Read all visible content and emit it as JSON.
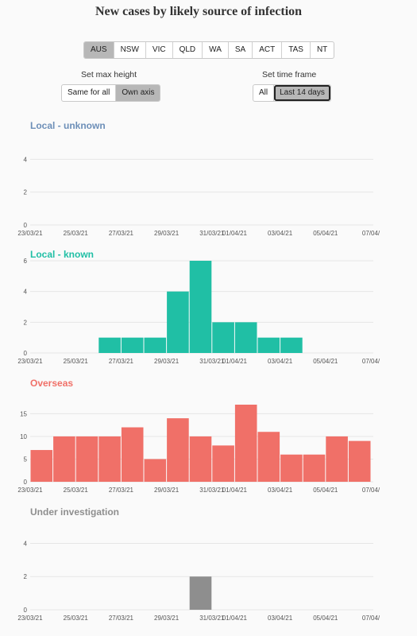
{
  "title": "New cases by likely source of infection",
  "region_tabs": [
    {
      "label": "AUS",
      "active": true
    },
    {
      "label": "NSW",
      "active": false
    },
    {
      "label": "VIC",
      "active": false
    },
    {
      "label": "QLD",
      "active": false
    },
    {
      "label": "WA",
      "active": false
    },
    {
      "label": "SA",
      "active": false
    },
    {
      "label": "ACT",
      "active": false
    },
    {
      "label": "TAS",
      "active": false
    },
    {
      "label": "NT",
      "active": false
    }
  ],
  "max_height": {
    "label": "Set max height",
    "options": [
      {
        "label": "Same for all",
        "active": false
      },
      {
        "label": "Own axis",
        "active": true
      }
    ]
  },
  "time_frame": {
    "label": "Set time frame",
    "options": [
      {
        "label": "All",
        "active": false
      },
      {
        "label": "Last 14 days",
        "active": true
      }
    ]
  },
  "colors": {
    "local_unknown": "#6d8fb8",
    "local_known": "#20bfa5",
    "overseas": "#f07068",
    "under_investigation": "#8e8e8e",
    "grid": "#e6e6e6"
  },
  "chart_data": [
    {
      "type": "bar",
      "title": "Local - unknown",
      "categories": [
        "23/03/21",
        "24/03/21",
        "25/03/21",
        "26/03/21",
        "27/03/21",
        "28/03/21",
        "29/03/21",
        "30/03/21",
        "31/03/21",
        "01/04/21",
        "02/04/21",
        "03/04/21",
        "04/04/21",
        "05/04/21",
        "06/04/21",
        "07/04/21"
      ],
      "values": [
        0,
        0,
        0,
        0,
        0,
        0,
        0,
        0,
        0,
        0,
        0,
        0,
        0,
        0,
        0,
        0
      ],
      "yticks": [
        0,
        2,
        4
      ],
      "ylim": [
        0,
        4.5
      ],
      "xtick_labels": [
        "23/03/21",
        "25/03/21",
        "27/03/21",
        "29/03/21",
        "31/03/21",
        "01/04/21",
        "03/04/21",
        "05/04/21",
        "07/04/"
      ],
      "grid": true
    },
    {
      "type": "bar",
      "title": "Local - known",
      "categories": [
        "23/03/21",
        "24/03/21",
        "25/03/21",
        "26/03/21",
        "27/03/21",
        "28/03/21",
        "29/03/21",
        "30/03/21",
        "31/03/21",
        "01/04/21",
        "02/04/21",
        "03/04/21",
        "04/04/21",
        "05/04/21",
        "06/04/21",
        "07/04/21"
      ],
      "values": [
        0,
        0,
        0,
        1,
        1,
        1,
        4,
        6,
        2,
        2,
        1,
        1,
        0,
        0,
        0,
        0
      ],
      "yticks": [
        0,
        2,
        4,
        6
      ],
      "ylim": [
        0,
        6
      ],
      "xtick_labels": [
        "23/03/21",
        "25/03/21",
        "27/03/21",
        "29/03/21",
        "31/03/21",
        "01/04/21",
        "03/04/21",
        "05/04/21",
        "07/04/"
      ],
      "grid": true
    },
    {
      "type": "bar",
      "title": "Overseas",
      "categories": [
        "23/03/21",
        "24/03/21",
        "25/03/21",
        "26/03/21",
        "27/03/21",
        "28/03/21",
        "29/03/21",
        "30/03/21",
        "31/03/21",
        "01/04/21",
        "02/04/21",
        "03/04/21",
        "04/04/21",
        "05/04/21",
        "06/04/21",
        "07/04/21"
      ],
      "values": [
        7,
        10,
        10,
        10,
        12,
        5,
        14,
        10,
        8,
        17,
        11,
        6,
        6,
        10,
        9,
        0
      ],
      "yticks": [
        0,
        5,
        10,
        15
      ],
      "ylim": [
        0,
        17
      ],
      "xtick_labels": [
        "23/03/21",
        "25/03/21",
        "27/03/21",
        "29/03/21",
        "31/03/21",
        "01/04/21",
        "03/04/21",
        "05/04/21",
        "07/04/"
      ],
      "grid": true
    },
    {
      "type": "bar",
      "title": "Under investigation",
      "categories": [
        "23/03/21",
        "24/03/21",
        "25/03/21",
        "26/03/21",
        "27/03/21",
        "28/03/21",
        "29/03/21",
        "30/03/21",
        "31/03/21",
        "01/04/21",
        "02/04/21",
        "03/04/21",
        "04/04/21",
        "05/04/21",
        "06/04/21",
        "07/04/21"
      ],
      "values": [
        0,
        0,
        0,
        0,
        0,
        0,
        0,
        2,
        0,
        0,
        0,
        0,
        0,
        0,
        0,
        0
      ],
      "yticks": [
        0,
        2,
        4
      ],
      "ylim": [
        0,
        4.5
      ],
      "xtick_labels": [
        "23/03/21",
        "25/03/21",
        "27/03/21",
        "29/03/21",
        "31/03/21",
        "01/04/21",
        "03/04/21",
        "05/04/21",
        "07/04/"
      ],
      "grid": true
    }
  ]
}
